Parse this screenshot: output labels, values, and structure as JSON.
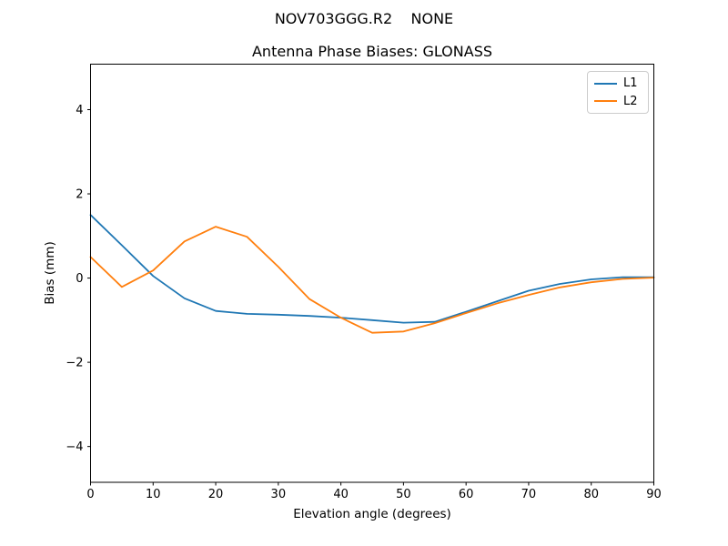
{
  "figure": {
    "suptitle": "NOV703GGG.R2    NONE",
    "background": "#ffffff"
  },
  "chart_data": {
    "type": "line",
    "title": "Antenna Phase Biases: GLONASS",
    "xlabel": "Elevation angle (degrees)",
    "ylabel": "Bias (mm)",
    "x": [
      0,
      5,
      10,
      15,
      20,
      25,
      30,
      35,
      40,
      45,
      50,
      55,
      60,
      65,
      70,
      75,
      80,
      85,
      90
    ],
    "series": [
      {
        "name": "L1",
        "color": "#1f77b4",
        "values": [
          1.5,
          0.78,
          0.05,
          -0.48,
          -0.78,
          -0.85,
          -0.87,
          -0.9,
          -0.94,
          -1.0,
          -1.06,
          -1.04,
          -0.8,
          -0.55,
          -0.3,
          -0.14,
          -0.03,
          0.02,
          0.02
        ]
      },
      {
        "name": "L2",
        "color": "#ff7f0e",
        "values": [
          0.5,
          -0.21,
          0.18,
          0.87,
          1.22,
          0.98,
          0.27,
          -0.5,
          -0.94,
          -1.3,
          -1.27,
          -1.07,
          -0.83,
          -0.6,
          -0.4,
          -0.22,
          -0.1,
          -0.02,
          0.01
        ]
      }
    ],
    "xlim": [
      0,
      90
    ],
    "ylim": [
      -4.85,
      5.08
    ],
    "xticks": [
      0,
      10,
      20,
      30,
      40,
      50,
      60,
      70,
      80,
      90
    ],
    "yticks": [
      -4,
      -2,
      0,
      2,
      4
    ],
    "grid": false,
    "legend": {
      "position": "upper right",
      "entries": [
        "L1",
        "L2"
      ]
    }
  },
  "colors": {
    "spine": "#000000",
    "tick": "#000000",
    "legend_border": "#cccccc"
  }
}
